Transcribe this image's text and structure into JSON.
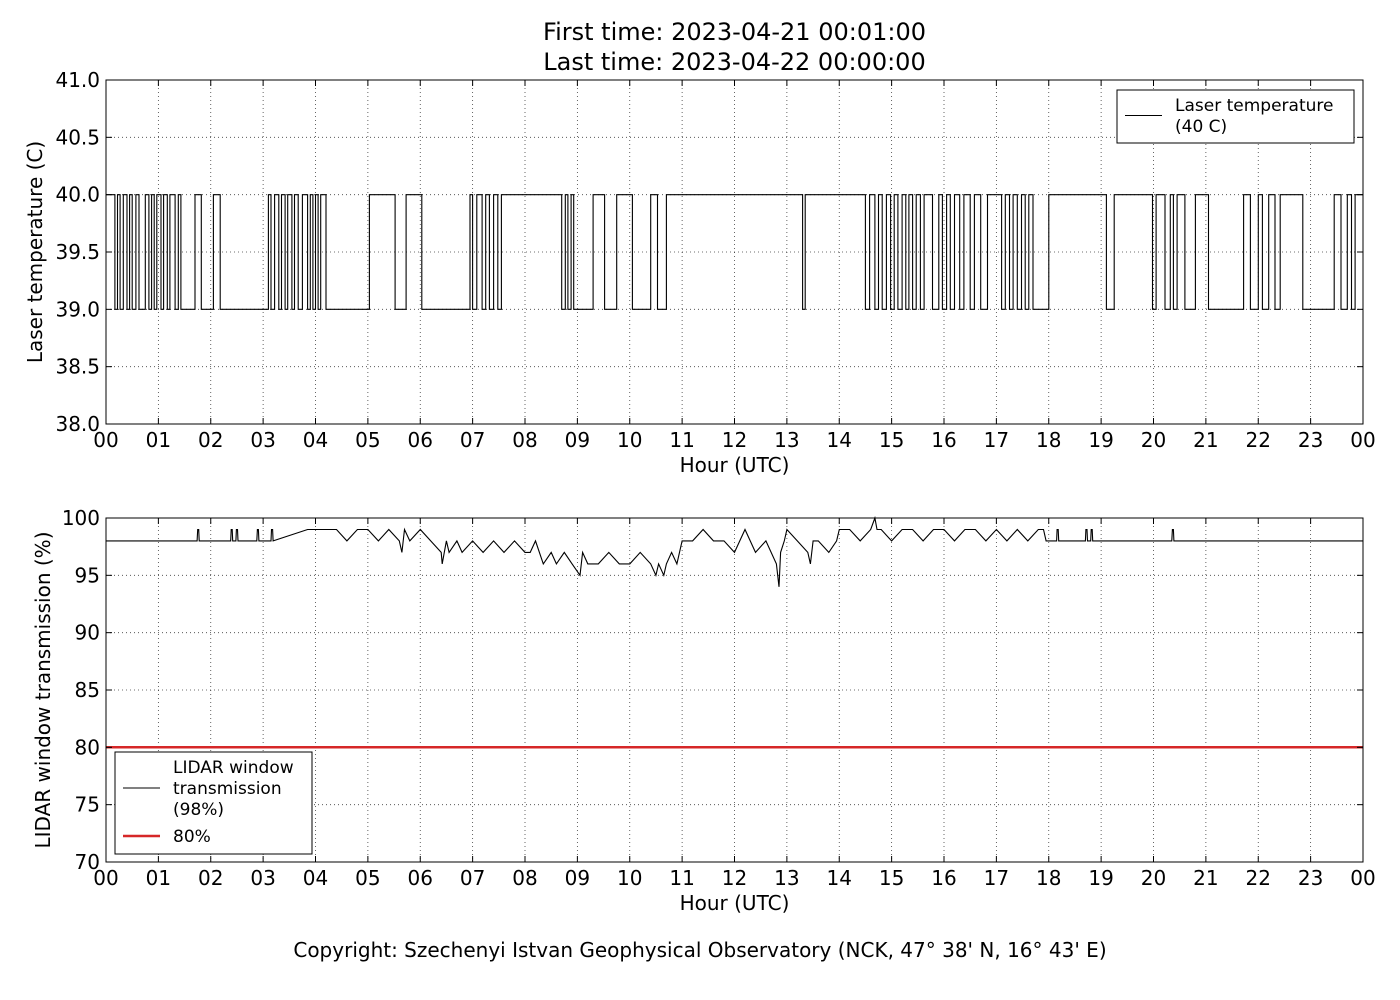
{
  "figure": {
    "title_line1": "First time: 2023-04-21 00:01:00",
    "title_line2": "Last time: 2023-04-22 00:00:00",
    "copyright": "Copyright: Szechenyi Istvan Geophysical Observatory (NCK, 47° 38' N, 16° 43' E)"
  },
  "chart_data": [
    {
      "type": "line",
      "xlabel": "Hour (UTC)",
      "ylabel": "Laser temperature (C)",
      "xlim": [
        0,
        24
      ],
      "ylim": [
        38.0,
        41.0
      ],
      "x_ticks": [
        "00",
        "01",
        "02",
        "03",
        "04",
        "05",
        "06",
        "07",
        "08",
        "09",
        "10",
        "11",
        "12",
        "13",
        "14",
        "15",
        "16",
        "17",
        "18",
        "19",
        "20",
        "21",
        "22",
        "23",
        "00"
      ],
      "y_ticks": [
        "38.0",
        "38.5",
        "39.0",
        "39.5",
        "40.0",
        "40.5",
        "41.0"
      ],
      "grid": true,
      "legend_position": "top-right",
      "series": [
        {
          "name": "Laser temperature\n(40 C)",
          "color": "#000000",
          "baseline": 40.0,
          "dip_value": 39.0,
          "dips_hours": [
            0.17,
            0.22,
            0.27,
            0.33,
            0.4,
            0.45,
            0.5,
            0.57,
            0.63,
            0.75,
            0.82,
            0.87,
            0.92,
            0.97,
            1.05,
            1.1,
            1.17,
            1.22,
            1.32,
            1.38,
            1.43,
            1.7,
            1.82,
            2.05,
            2.18,
            3.1,
            3.15,
            3.22,
            3.3,
            3.35,
            3.42,
            3.47,
            3.55,
            3.6,
            3.67,
            3.75,
            3.85,
            3.9,
            3.95,
            4.0,
            4.05,
            4.1,
            4.2,
            5.03,
            5.52,
            5.73,
            6.03,
            6.95,
            7.0,
            7.08,
            7.18,
            7.25,
            7.32,
            7.4,
            7.48,
            7.55,
            8.7,
            8.77,
            8.82,
            8.88,
            8.93,
            9.3,
            9.52,
            9.75,
            10.05,
            10.4,
            10.53,
            10.7,
            13.3,
            13.35,
            14.5,
            14.58,
            14.68,
            14.75,
            14.82,
            14.9,
            14.98,
            15.05,
            15.12,
            15.2,
            15.27,
            15.33,
            15.4,
            15.47,
            15.55,
            15.62,
            15.78,
            15.9,
            15.97,
            16.05,
            16.12,
            16.2,
            16.3,
            16.38,
            16.5,
            16.58,
            16.7,
            16.83,
            17.1,
            17.17,
            17.25,
            17.32,
            17.4,
            17.48,
            17.55,
            17.62,
            17.7,
            18.0,
            19.1,
            19.25,
            19.98,
            20.05,
            20.22,
            20.32,
            20.38,
            20.45,
            20.6,
            20.8,
            21.05,
            21.72,
            21.85,
            22.0,
            22.08,
            22.2,
            22.32,
            22.42,
            22.85,
            23.45,
            23.58,
            23.7,
            23.78,
            23.85
          ]
        }
      ]
    },
    {
      "type": "line",
      "xlabel": "Hour (UTC)",
      "ylabel": "LIDAR window transmission (%)",
      "xlim": [
        0,
        24
      ],
      "ylim": [
        70,
        100
      ],
      "x_ticks": [
        "00",
        "01",
        "02",
        "03",
        "04",
        "05",
        "06",
        "07",
        "08",
        "09",
        "10",
        "11",
        "12",
        "13",
        "14",
        "15",
        "16",
        "17",
        "18",
        "19",
        "20",
        "21",
        "22",
        "23",
        "00"
      ],
      "y_ticks": [
        "70",
        "75",
        "80",
        "85",
        "90",
        "95",
        "100"
      ],
      "grid": true,
      "legend_position": "bottom-left",
      "series": [
        {
          "name": "LIDAR window\ntransmission\n(98%)",
          "color": "#000000",
          "x": [
            0,
            1.74,
            1.75,
            1.77,
            1.78,
            2.38,
            2.39,
            2.41,
            2.42,
            2.48,
            2.49,
            2.51,
            2.52,
            2.88,
            2.89,
            2.91,
            2.92,
            3.15,
            3.16,
            3.18,
            3.19,
            3.85,
            4.0,
            4.2,
            4.4,
            4.6,
            4.8,
            5.0,
            5.2,
            5.4,
            5.6,
            5.65,
            5.7,
            5.8,
            6.0,
            6.2,
            6.4,
            6.42,
            6.5,
            6.55,
            6.7,
            6.8,
            7.0,
            7.2,
            7.4,
            7.6,
            7.8,
            8.0,
            8.1,
            8.2,
            8.35,
            8.5,
            8.6,
            8.75,
            8.9,
            9.05,
            9.1,
            9.2,
            9.4,
            9.6,
            9.8,
            10.0,
            10.2,
            10.4,
            10.5,
            10.55,
            10.65,
            10.7,
            10.8,
            10.9,
            11.0,
            11.2,
            11.4,
            11.6,
            11.8,
            12.0,
            12.2,
            12.4,
            12.6,
            12.8,
            12.85,
            12.88,
            12.95,
            13.0,
            13.2,
            13.4,
            13.45,
            13.5,
            13.6,
            13.8,
            13.95,
            14.0,
            14.2,
            14.4,
            14.6,
            14.68,
            14.72,
            14.8,
            15.0,
            15.2,
            15.4,
            15.6,
            15.8,
            16.0,
            16.2,
            16.4,
            16.6,
            16.8,
            17.0,
            17.2,
            17.4,
            17.6,
            17.8,
            17.9,
            17.95,
            18.15,
            18.16,
            18.18,
            18.19,
            18.7,
            18.71,
            18.73,
            18.74,
            18.8,
            18.81,
            18.83,
            18.84,
            20.35,
            20.36,
            20.38,
            20.39,
            24.0
          ],
          "y": [
            98,
            98,
            99,
            99,
            98,
            98,
            99,
            99,
            98,
            98,
            99,
            99,
            98,
            98,
            99,
            99,
            98,
            98,
            99,
            99,
            98,
            99,
            99,
            99,
            99,
            98,
            99,
            99,
            98,
            99,
            98,
            97,
            99,
            98,
            99,
            98,
            97,
            96,
            98,
            97,
            98,
            97,
            98,
            97,
            98,
            97,
            98,
            97,
            97,
            98,
            96,
            97,
            96,
            97,
            96,
            95,
            97,
            96,
            96,
            97,
            96,
            96,
            97,
            96,
            95,
            96,
            95,
            96,
            97,
            96,
            98,
            98,
            99,
            98,
            98,
            97,
            99,
            97,
            98,
            96,
            94,
            97,
            98,
            99,
            98,
            97,
            96,
            98,
            98,
            97,
            98,
            99,
            99,
            98,
            99,
            100,
            99,
            99,
            98,
            99,
            99,
            98,
            99,
            99,
            98,
            99,
            99,
            98,
            99,
            98,
            99,
            98,
            99,
            99,
            98,
            98,
            99,
            99,
            98,
            98,
            99,
            99,
            98,
            98,
            99,
            99,
            98,
            98,
            99,
            99,
            98,
            98
          ]
        },
        {
          "name": "80%",
          "color": "#d62728",
          "x": [
            0,
            24
          ],
          "y": [
            80,
            80
          ]
        }
      ]
    }
  ]
}
